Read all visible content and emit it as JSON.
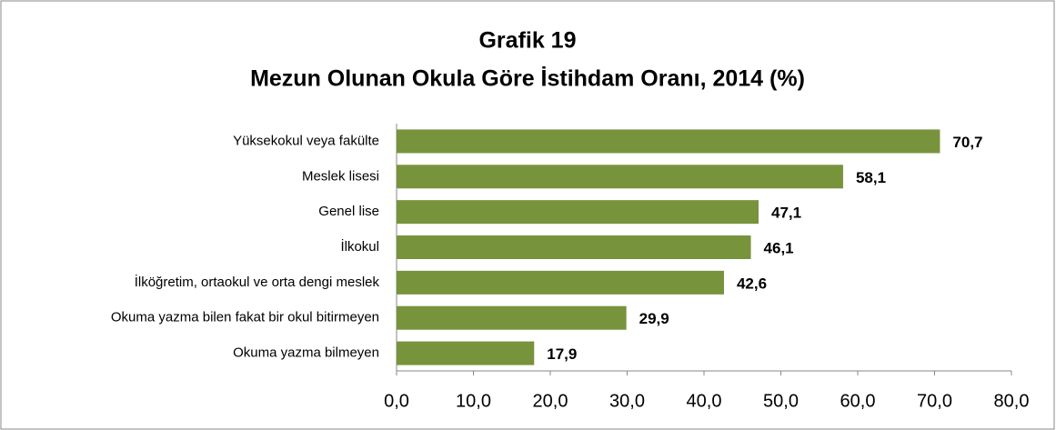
{
  "chart_data": {
    "type": "bar",
    "orientation": "horizontal",
    "title": "Grafik 19",
    "subtitle": "Mezun Olunan Okula Göre İstihdam Oranı, 2014 (%)",
    "categories": [
      "Yüksekokul veya fakülte",
      "Meslek lisesi",
      "Genel lise",
      "İlkokul",
      "İlköğretim, ortaokul ve orta dengi meslek",
      "Okuma yazma bilen fakat bir okul bitirmeyen",
      "Okuma yazma bilmeyen"
    ],
    "values": [
      70.7,
      58.1,
      47.1,
      46.1,
      42.6,
      29.9,
      17.9
    ],
    "value_labels": [
      "70,7",
      "58,1",
      "47,1",
      "46,1",
      "42,6",
      "29,9",
      "17,9"
    ],
    "color": "#77933c",
    "xlim": [
      0,
      80
    ],
    "xticks": [
      {
        "value": 0,
        "label": "0,0"
      },
      {
        "value": 10,
        "label": "10,0"
      },
      {
        "value": 20,
        "label": "20,0"
      },
      {
        "value": 30,
        "label": "30,0"
      },
      {
        "value": 40,
        "label": "40,0"
      },
      {
        "value": 50,
        "label": "50,0"
      },
      {
        "value": 60,
        "label": "60,0"
      },
      {
        "value": 70,
        "label": "70,0"
      },
      {
        "value": 80,
        "label": "80,0"
      }
    ],
    "grid": false
  }
}
